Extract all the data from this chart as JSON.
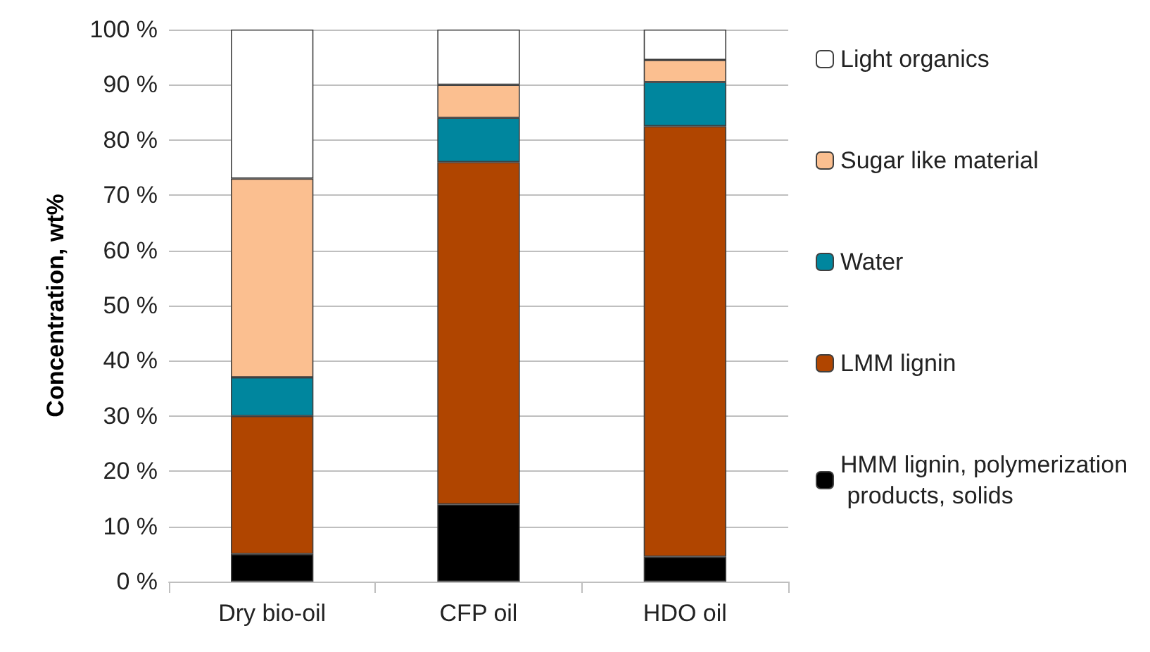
{
  "chart_data": {
    "type": "bar",
    "stacked": true,
    "ylabel": "Concentration, wt%",
    "categories": [
      "Dry bio-oil",
      "CFP oil",
      "HDO oil"
    ],
    "series": [
      {
        "name": "HMM lignin, polymerization products, solids",
        "color": "#000000",
        "values": [
          5,
          14,
          4.5
        ]
      },
      {
        "name": "LMM lignin",
        "color": "#b04500",
        "values": [
          25,
          62,
          78
        ]
      },
      {
        "name": "Water",
        "color": "#00869e",
        "values": [
          7,
          8,
          8
        ]
      },
      {
        "name": "Sugar like material",
        "color": "#fbbf90",
        "values": [
          36,
          6,
          4
        ]
      },
      {
        "name": "Light organics",
        "color": "#ffffff",
        "values": [
          27,
          10,
          5.5
        ]
      }
    ],
    "ylim": [
      0,
      100
    ],
    "yticks": [
      {
        "value": 0,
        "label": "0 %"
      },
      {
        "value": 10,
        "label": "10 %"
      },
      {
        "value": 20,
        "label": "20 %"
      },
      {
        "value": 30,
        "label": "30 %"
      },
      {
        "value": 40,
        "label": "40 %"
      },
      {
        "value": 50,
        "label": "50 %"
      },
      {
        "value": 60,
        "label": "60 %"
      },
      {
        "value": 70,
        "label": "70 %"
      },
      {
        "value": 80,
        "label": "80 %"
      },
      {
        "value": 90,
        "label": "90 %"
      },
      {
        "value": 100,
        "label": "100 %"
      }
    ],
    "grid": "y",
    "legend": "right"
  }
}
